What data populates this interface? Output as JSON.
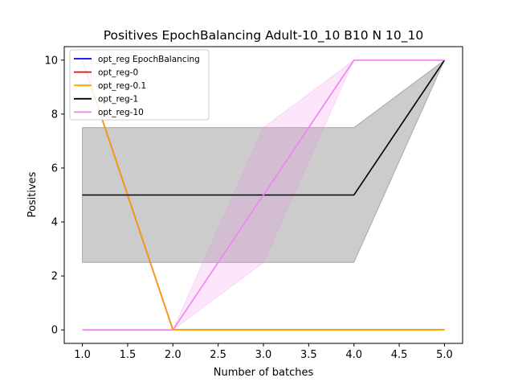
{
  "chart_data": {
    "type": "line",
    "title": "Positives EpochBalancing Adult-10_10 B10 N 10_10",
    "xlabel": "Number of batches",
    "ylabel": "Positives",
    "xlim": [
      0.8,
      5.2
    ],
    "ylim": [
      -0.5,
      10.5
    ],
    "xticks": [
      "1.0",
      "1.5",
      "2.0",
      "2.5",
      "3.0",
      "3.5",
      "4.0",
      "4.5",
      "5.0"
    ],
    "yticks": [
      "0",
      "2",
      "4",
      "6",
      "8",
      "10"
    ],
    "grid": false,
    "legend_position": "top-left",
    "x": [
      1,
      2,
      3,
      4,
      5
    ],
    "series": [
      {
        "name": "opt_reg EpochBalancing",
        "color": "#0000ff",
        "values": [
          10,
          0,
          0,
          0,
          0
        ],
        "band": null
      },
      {
        "name": "opt_reg-0",
        "color": "#ff0000",
        "values": [
          10,
          0,
          0,
          0,
          0
        ],
        "band": null
      },
      {
        "name": "opt_reg-0.1",
        "color": "#ffa500",
        "values": [
          10,
          0,
          0,
          0,
          0
        ],
        "band": null
      },
      {
        "name": "opt_reg-1",
        "color": "#000000",
        "values": [
          5,
          5,
          5,
          5,
          10
        ],
        "band": {
          "lower": [
            2.5,
            2.5,
            2.5,
            2.5,
            10
          ],
          "upper": [
            7.5,
            7.5,
            7.5,
            7.5,
            10
          ]
        }
      },
      {
        "name": "opt_reg-10",
        "color": "#ee82ee",
        "values": [
          0,
          0,
          5,
          10,
          10
        ],
        "band": {
          "lower": [
            0,
            0,
            2.5,
            10,
            10
          ],
          "upper": [
            0,
            0,
            7.5,
            10,
            10
          ]
        }
      }
    ]
  }
}
